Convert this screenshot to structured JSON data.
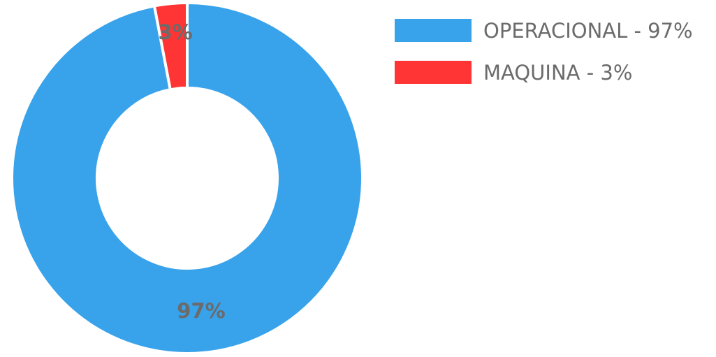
{
  "chart_data": {
    "type": "pie",
    "title": "",
    "donut": true,
    "legend_position": "top-right",
    "categories": [
      "OPERACIONAL",
      "MAQUINA"
    ],
    "values": [
      97,
      3
    ],
    "colors": [
      "#38a2ea",
      "#ff3434"
    ],
    "slice_labels": [
      "97%",
      "3%"
    ],
    "legend_labels": [
      "OPERACIONAL - 97%",
      "MAQUINA - 3%"
    ]
  }
}
